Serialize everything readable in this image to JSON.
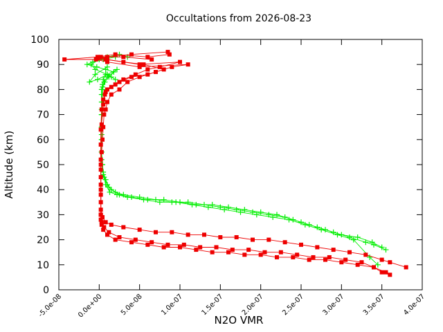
{
  "chart_data": {
    "type": "scatter",
    "title": "Occultations from 2026-08-23",
    "xlabel": "N2O VMR",
    "ylabel": "Altitude (km)",
    "xlim": [
      -5e-08,
      4e-07
    ],
    "ylim": [
      0,
      100
    ],
    "x_tick_labels": [
      "-5.0e-08",
      "0.0e+00",
      "5.0e-08",
      "1.0e-07",
      "1.5e-07",
      "2.0e-07",
      "2.5e-07",
      "3.0e-07",
      "3.5e-07",
      "4.0e-07"
    ],
    "y_tick_labels": [
      "0",
      "10",
      "20",
      "30",
      "40",
      "50",
      "60",
      "70",
      "80",
      "90",
      "100"
    ],
    "grid": false,
    "legend": "none",
    "series": [
      {
        "marker": "plus",
        "color": "#00ee00",
        "profiles": [
          {
            "x": [
              3.55e-07,
              3.4e-07,
              3.3e-07,
              3.1e-07,
              2.9e-07,
              2.7e-07,
              2.5e-07,
              2.3e-07,
              2.1e-07,
              1.9e-07,
              1.7e-07,
              1.5e-07,
              1.3e-07,
              1.1e-07,
              9e-08,
              7e-08,
              5e-08,
              3e-08,
              2e-08,
              1.2e-08,
              8e-09,
              5e-09,
              4e-09,
              3e-09,
              3e-09,
              3e-09,
              3e-09,
              3e-09,
              3e-09,
              4e-09,
              5e-09,
              8e-09,
              1.5e-08,
              2e-08,
              1e-08,
              -5e-09,
              -1e-08,
              0.0,
              1e-08,
              2.5e-08,
              3.5e-08
            ],
            "y": [
              16,
              18,
              19,
              21,
              23,
              25,
              27,
              29,
              30,
              31,
              32,
              33,
              34,
              35,
              35,
              36,
              37,
              38,
              39,
              41,
              44,
              47,
              50,
              55,
              60,
              65,
              70,
              75,
              80,
              82,
              84,
              86,
              85,
              84,
              86,
              88,
              90,
              92,
              93,
              94,
              93
            ]
          },
          {
            "x": [
              3.5e-07,
              3.38e-07,
              3.2e-07,
              3e-07,
              2.8e-07,
              2.6e-07,
              2.4e-07,
              2.2e-07,
              2e-07,
              1.8e-07,
              1.6e-07,
              1.4e-07,
              1.2e-07,
              1e-07,
              8e-08,
              6e-08,
              4e-08,
              2.5e-08,
              1.5e-08,
              1e-08,
              6e-09,
              4e-09,
              3e-09,
              3e-09,
              3e-09,
              3e-09,
              4e-09,
              6e-09,
              1e-08,
              1.8e-08,
              8e-09,
              -3e-09,
              -1.5e-08,
              -8e-09,
              5e-09,
              2e-08
            ],
            "y": [
              17,
              19,
              21,
              22,
              24,
              26,
              28,
              30,
              31,
              32,
              33,
              34,
              34,
              35,
              36,
              36,
              37,
              38,
              40,
              42,
              45,
              50,
              55,
              62,
              70,
              78,
              81,
              83,
              85,
              87,
              88,
              89,
              90,
              91,
              92,
              93
            ]
          },
          {
            "x": [
              3.45e-07,
              3.35e-07,
              3.15e-07,
              2.95e-07,
              2.75e-07,
              2.55e-07,
              2.35e-07,
              2.15e-07,
              1.95e-07,
              1.75e-07,
              1.55e-07,
              1.35e-07,
              1.15e-07,
              9.5e-08,
              7.5e-08,
              5.5e-08,
              3.5e-08,
              2.2e-08,
              1.3e-08,
              8e-09,
              5e-09,
              3e-09,
              3e-09,
              3e-09,
              4e-09,
              7e-09,
              1.2e-08,
              2.2e-08,
              1e-08,
              -2e-09,
              -1.2e-08,
              -5e-09,
              1e-08
            ],
            "y": [
              10,
              13,
              20,
              22,
              24,
              26,
              28,
              29,
              30,
              31,
              32,
              33,
              34,
              35,
              35,
              36,
              37,
              38,
              39,
              42,
              46,
              52,
              60,
              72,
              80,
              83,
              85,
              88,
              86,
              84,
              83,
              86,
              89
            ]
          }
        ]
      },
      {
        "marker": "square",
        "color": "#ee0000",
        "profiles": [
          {
            "x": [
              3.6e-07,
              3.5e-07,
              3.4e-07,
              3.2e-07,
              3e-07,
              2.8e-07,
              2.6e-07,
              2.4e-07,
              2.2e-07,
              2e-07,
              1.8e-07,
              1.6e-07,
              1.4e-07,
              1.2e-07,
              1e-07,
              8e-08,
              6e-08,
              4e-08,
              2e-08,
              1e-08,
              5e-09,
              3e-09,
              2e-09,
              2e-09,
              2e-09,
              2e-09,
              2e-09,
              2e-09,
              3e-09,
              4e-09,
              5e-09,
              6e-09,
              8e-09,
              1e-08,
              1.5e-08,
              2.5e-08,
              3.5e-08,
              5e-08,
              7e-08,
              9e-08,
              1.1e-07,
              5e-08,
              1e-08,
              -4e-09,
              1e-08,
              4e-08,
              8.5e-08
            ],
            "y": [
              6,
              7,
              9,
              10,
              11,
              12,
              12,
              13,
              13,
              14,
              14,
              15,
              15,
              16,
              17,
              17,
              18,
              19,
              20,
              22,
              24,
              26,
              28,
              30,
              35,
              40,
              45,
              50,
              55,
              60,
              65,
              70,
              72,
              75,
              78,
              80,
              83,
              85,
              87,
              89,
              90,
              89,
              91,
              92,
              93,
              94,
              95
            ]
          },
          {
            "x": [
              3.55e-07,
              3.4e-07,
              3.25e-07,
              3.05e-07,
              2.85e-07,
              2.65e-07,
              2.45e-07,
              2.25e-07,
              2.05e-07,
              1.85e-07,
              1.65e-07,
              1.45e-07,
              1.25e-07,
              1.05e-07,
              8.5e-08,
              6.5e-08,
              4.5e-08,
              2.5e-08,
              1.2e-08,
              6e-09,
              3e-09,
              2e-09,
              2e-09,
              2e-09,
              2e-09,
              3e-09,
              5e-09,
              7e-09,
              1e-08,
              2e-08,
              3e-08,
              4.5e-08,
              6e-08,
              7.5e-08,
              1e-07,
              5e-08,
              1e-08,
              -4.3e-08,
              -2e-09,
              2e-08,
              6e-08,
              8.7e-08
            ],
            "y": [
              7,
              9,
              11,
              12,
              13,
              13,
              14,
              15,
              15,
              16,
              16,
              17,
              17,
              18,
              18,
              19,
              20,
              21,
              23,
              25,
              27,
              30,
              38,
              48,
              58,
              66,
              74,
              78,
              80,
              82,
              84,
              86,
              88,
              89,
              91,
              90,
              92,
              92,
              93,
              94,
              93,
              94
            ]
          },
          {
            "x": [
              3.8e-07,
              3.6e-07,
              3.5e-07,
              3.3e-07,
              3.1e-07,
              2.9e-07,
              2.7e-07,
              2.5e-07,
              2.3e-07,
              2.1e-07,
              1.9e-07,
              1.7e-07,
              1.5e-07,
              1.3e-07,
              1.1e-07,
              9e-08,
              7e-08,
              5e-08,
              3e-08,
              1.5e-08,
              8e-09,
              4e-09,
              2e-09,
              2e-09,
              2e-09,
              2e-09,
              3e-09,
              5e-09,
              8e-09,
              1.5e-08,
              2.5e-08,
              4e-08,
              6e-08,
              8e-08,
              5.5e-08,
              3e-08,
              8e-09,
              2e-09,
              3e-08,
              6.5e-08
            ],
            "y": [
              9,
              11,
              12,
              14,
              15,
              16,
              17,
              18,
              19,
              20,
              20,
              21,
              21,
              22,
              22,
              23,
              23,
              24,
              25,
              26,
              27,
              29,
              32,
              42,
              52,
              64,
              72,
              76,
              79,
              81,
              83,
              85,
              86,
              88,
              90,
              91,
              92,
              93,
              93,
              92
            ]
          }
        ]
      }
    ]
  }
}
